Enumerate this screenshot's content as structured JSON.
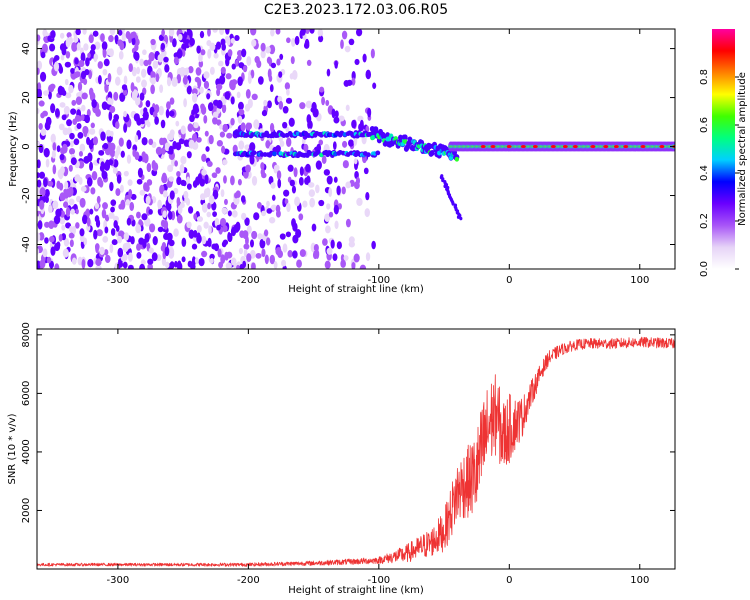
{
  "title": "C2E3.2023.172.03.06.R05",
  "chart_data": [
    {
      "type": "heatmap",
      "xlabel": "Height of straight line (km)",
      "ylabel": "Frequency (Hz)",
      "xlim": [
        -362,
        127
      ],
      "ylim": [
        -50,
        48
      ],
      "xticks": [
        -300,
        -200,
        -100,
        0,
        100
      ],
      "xtick_labels": [
        "-300",
        "-200",
        "-100",
        "0",
        "100"
      ],
      "yticks": [
        -40,
        -20,
        0,
        20,
        40
      ],
      "ytick_labels": [
        "-40",
        "-20",
        "0",
        "20",
        "40"
      ],
      "grid": false,
      "colorbar": {
        "label": "Normalized spectral amplitude",
        "range": [
          0,
          1
        ],
        "ticks": [
          0.0,
          0.2,
          0.4,
          0.6,
          0.8
        ],
        "tick_labels": [
          "0.0",
          "0.2",
          "0.4",
          "0.6",
          "0.8"
        ],
        "colormap": [
          "#ffffff",
          "#e6d3f7",
          "#a855f7",
          "#6a00ff",
          "#0000ff",
          "#00d0ff",
          "#00ff80",
          "#40ff00",
          "#ffff00",
          "#ff8000",
          "#ff0000",
          "#ff00a0"
        ]
      },
      "regions": [
        {
          "x": [
            -362,
            -103
          ],
          "y": [
            -50,
            48
          ],
          "amplitude": 0.1,
          "pattern": "scattered noise"
        },
        {
          "x": [
            -210,
            -100
          ],
          "y": [
            -4,
            6
          ],
          "amplitude": 0.45,
          "pattern": "two parallel bands"
        },
        {
          "x": [
            -100,
            -40
          ],
          "y": [
            -14,
            8
          ],
          "amplitude": 0.5,
          "pattern": "descending band"
        },
        {
          "x": [
            -40,
            127
          ],
          "y": [
            -1,
            1
          ],
          "amplitude": 0.9,
          "pattern": "narrow carrier line"
        }
      ]
    },
    {
      "type": "line",
      "xlabel": "Height of straight line (km)",
      "ylabel": "SNR (10 * v/v)",
      "xlim": [
        -362,
        127
      ],
      "ylim": [
        0,
        8200
      ],
      "xticks": [
        -300,
        -200,
        -100,
        0,
        100
      ],
      "xtick_labels": [
        "-300",
        "-200",
        "-100",
        "0",
        "100"
      ],
      "yticks": [
        2000,
        4000,
        6000,
        8000
      ],
      "ytick_labels": [
        "2000",
        "4000",
        "6000",
        "8000"
      ],
      "grid": false,
      "series": [
        {
          "color": "#ee3333",
          "x": [
            -362,
            -300,
            -200,
            -150,
            -120,
            -100,
            -90,
            -80,
            -70,
            -60,
            -50,
            -45,
            -40,
            -35,
            -30,
            -25,
            -20,
            -15,
            -10,
            -5,
            0,
            5,
            10,
            15,
            20,
            25,
            30,
            40,
            50,
            60,
            80,
            100,
            127
          ],
          "y": [
            150,
            150,
            150,
            200,
            250,
            300,
            400,
            500,
            700,
            900,
            1300,
            1900,
            2600,
            2900,
            3000,
            3300,
            4200,
            5000,
            5300,
            4500,
            4800,
            5000,
            5200,
            5800,
            6300,
            6800,
            7200,
            7500,
            7650,
            7700,
            7700,
            7750,
            7700
          ],
          "noise": [
            50,
            50,
            60,
            80,
            100,
            120,
            200,
            300,
            400,
            500,
            700,
            900,
            1100,
            1200,
            1300,
            1500,
            1700,
            1500,
            1400,
            1300,
            1200,
            900,
            700,
            500,
            400,
            300,
            250,
            200,
            180,
            180,
            180,
            180,
            180
          ]
        }
      ]
    }
  ]
}
